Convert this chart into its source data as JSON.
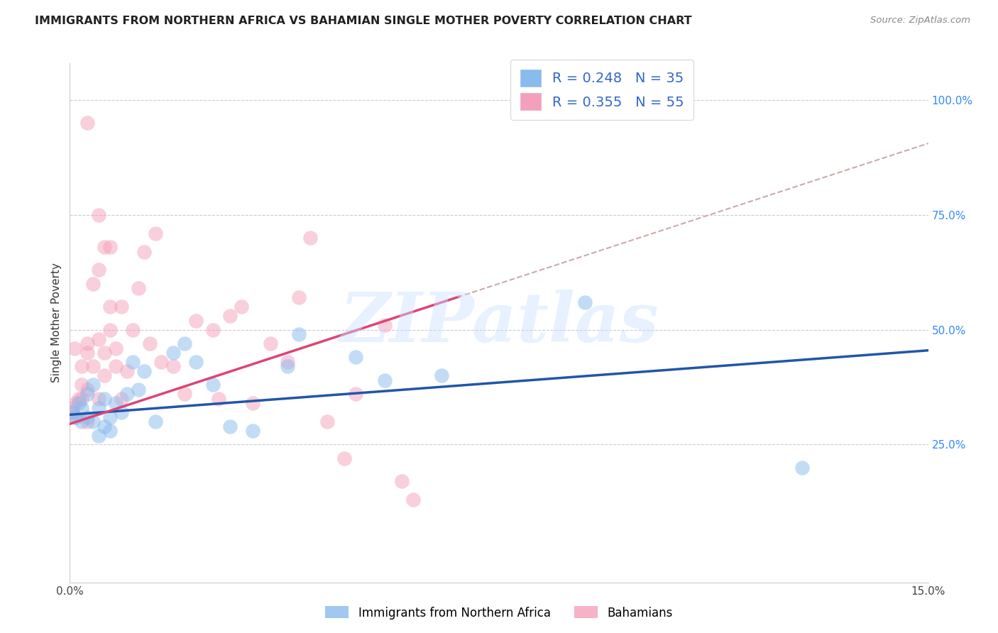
{
  "title": "IMMIGRANTS FROM NORTHERN AFRICA VS BAHAMIAN SINGLE MOTHER POVERTY CORRELATION CHART",
  "source": "Source: ZipAtlas.com",
  "ylabel": "Single Mother Poverty",
  "xlim": [
    0.0,
    0.15
  ],
  "ylim": [
    -0.05,
    1.08
  ],
  "xtick_vals": [
    0.0,
    0.15
  ],
  "xtick_labels": [
    "0.0%",
    "15.0%"
  ],
  "ytick_vals_right": [
    0.25,
    0.5,
    0.75,
    1.0
  ],
  "ytick_labels_right": [
    "25.0%",
    "50.0%",
    "75.0%",
    "100.0%"
  ],
  "r1": 0.248,
  "n1": 35,
  "r2": 0.355,
  "n2": 55,
  "blue_scatter_color": "#88bbee",
  "pink_scatter_color": "#f4a0bb",
  "trend_blue_color": "#2255aa",
  "trend_pink_color": "#dd4477",
  "dashed_color": "#ccaaaa",
  "watermark_text": "ZIPatlas",
  "watermark_color": "#cce0ff",
  "blue_x": [
    0.0005,
    0.001,
    0.0015,
    0.002,
    0.002,
    0.003,
    0.003,
    0.004,
    0.004,
    0.005,
    0.005,
    0.006,
    0.006,
    0.007,
    0.007,
    0.008,
    0.009,
    0.01,
    0.011,
    0.012,
    0.013,
    0.015,
    0.018,
    0.02,
    0.022,
    0.025,
    0.028,
    0.032,
    0.038,
    0.04,
    0.05,
    0.055,
    0.065,
    0.09,
    0.128
  ],
  "blue_y": [
    0.32,
    0.31,
    0.34,
    0.3,
    0.33,
    0.36,
    0.31,
    0.38,
    0.3,
    0.33,
    0.27,
    0.35,
    0.29,
    0.31,
    0.28,
    0.34,
    0.32,
    0.36,
    0.43,
    0.37,
    0.41,
    0.3,
    0.45,
    0.47,
    0.43,
    0.38,
    0.29,
    0.28,
    0.42,
    0.49,
    0.44,
    0.39,
    0.4,
    0.56,
    0.2
  ],
  "pink_x": [
    0.0003,
    0.0005,
    0.0008,
    0.001,
    0.001,
    0.0015,
    0.002,
    0.002,
    0.002,
    0.003,
    0.003,
    0.003,
    0.003,
    0.004,
    0.004,
    0.005,
    0.005,
    0.005,
    0.006,
    0.006,
    0.006,
    0.007,
    0.007,
    0.008,
    0.008,
    0.009,
    0.009,
    0.01,
    0.011,
    0.012,
    0.013,
    0.014,
    0.015,
    0.016,
    0.018,
    0.02,
    0.022,
    0.025,
    0.026,
    0.028,
    0.03,
    0.032,
    0.035,
    0.038,
    0.04,
    0.042,
    0.045,
    0.048,
    0.05,
    0.055,
    0.058,
    0.06,
    0.003,
    0.005,
    0.007
  ],
  "pink_y": [
    0.33,
    0.32,
    0.46,
    0.31,
    0.34,
    0.35,
    0.42,
    0.35,
    0.38,
    0.45,
    0.47,
    0.3,
    0.37,
    0.6,
    0.42,
    0.35,
    0.48,
    0.63,
    0.68,
    0.45,
    0.4,
    0.5,
    0.55,
    0.46,
    0.42,
    0.35,
    0.55,
    0.41,
    0.5,
    0.59,
    0.67,
    0.47,
    0.71,
    0.43,
    0.42,
    0.36,
    0.52,
    0.5,
    0.35,
    0.53,
    0.55,
    0.34,
    0.47,
    0.43,
    0.57,
    0.7,
    0.3,
    0.22,
    0.36,
    0.51,
    0.17,
    0.13,
    0.95,
    0.75,
    0.68
  ],
  "legend_series1_label": "R = 0.248   N = 35",
  "legend_series2_label": "R = 0.355   N = 55",
  "bottom_label1": "Immigrants from Northern Africa",
  "bottom_label2": "Bahamians",
  "title_fontsize": 11.5,
  "axis_label_fontsize": 11,
  "tick_fontsize": 11
}
